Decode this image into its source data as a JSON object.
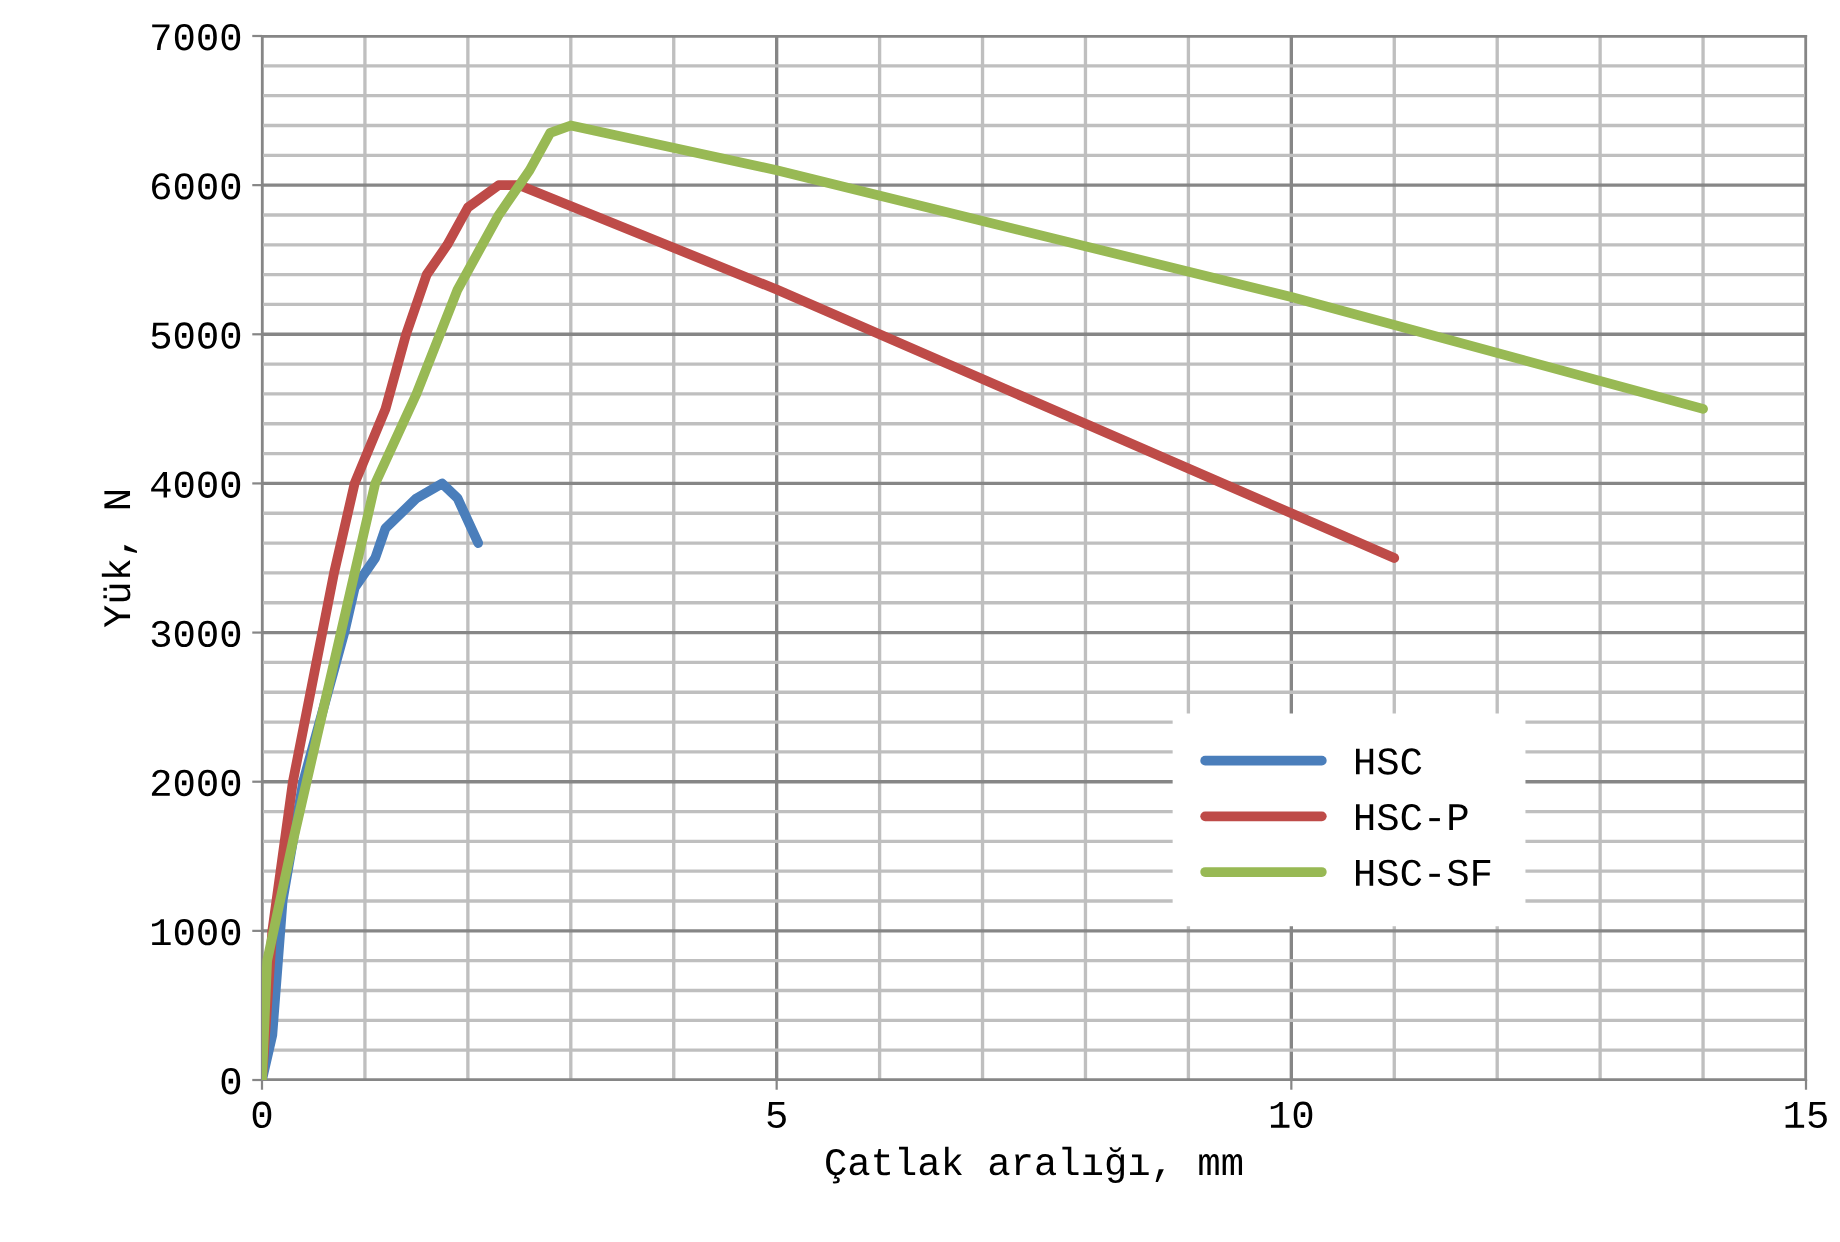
{
  "chart_data": {
    "type": "line",
    "xlabel": "Çatlak aralığı, mm",
    "ylabel": "Yük, N",
    "xlim": [
      0,
      15
    ],
    "xticks": [
      0,
      5,
      10,
      15
    ],
    "ylim": [
      0,
      7000
    ],
    "yticks": [
      0,
      1000,
      2000,
      3000,
      4000,
      5000,
      6000,
      7000
    ],
    "grid": true,
    "legend": "bottom right",
    "marker": "none",
    "line_style": "solid",
    "series": [
      {
        "name": "HSC",
        "color": "#4a7ebb",
        "x": [
          0,
          0.1,
          0.2,
          0.4,
          0.6,
          0.8,
          0.9,
          1.1,
          1.2,
          1.5,
          1.75,
          1.9,
          2.1
        ],
        "values": [
          0,
          300,
          1200,
          2000,
          2500,
          3000,
          3300,
          3500,
          3700,
          3900,
          4000,
          3900,
          3600
        ]
      },
      {
        "name": "HSC-P",
        "color": "#be4b48",
        "x": [
          0,
          0.1,
          0.3,
          0.5,
          0.7,
          0.9,
          1.2,
          1.4,
          1.6,
          1.8,
          2.0,
          2.3,
          2.5,
          5,
          8,
          11
        ],
        "values": [
          0,
          1000,
          2000,
          2700,
          3400,
          4000,
          4500,
          5000,
          5400,
          5600,
          5850,
          6000,
          6000,
          5300,
          4400,
          3500
        ]
      },
      {
        "name": "HSC-SF",
        "color": "#98b954",
        "x": [
          0,
          0.05,
          0.3,
          0.6,
          0.9,
          1.1,
          1.5,
          1.9,
          2.3,
          2.6,
          2.8,
          3,
          5,
          10,
          14
        ],
        "values": [
          0,
          800,
          1600,
          2500,
          3400,
          4000,
          4600,
          5300,
          5800,
          6100,
          6350,
          6400,
          6100,
          5250,
          4500
        ]
      }
    ]
  }
}
